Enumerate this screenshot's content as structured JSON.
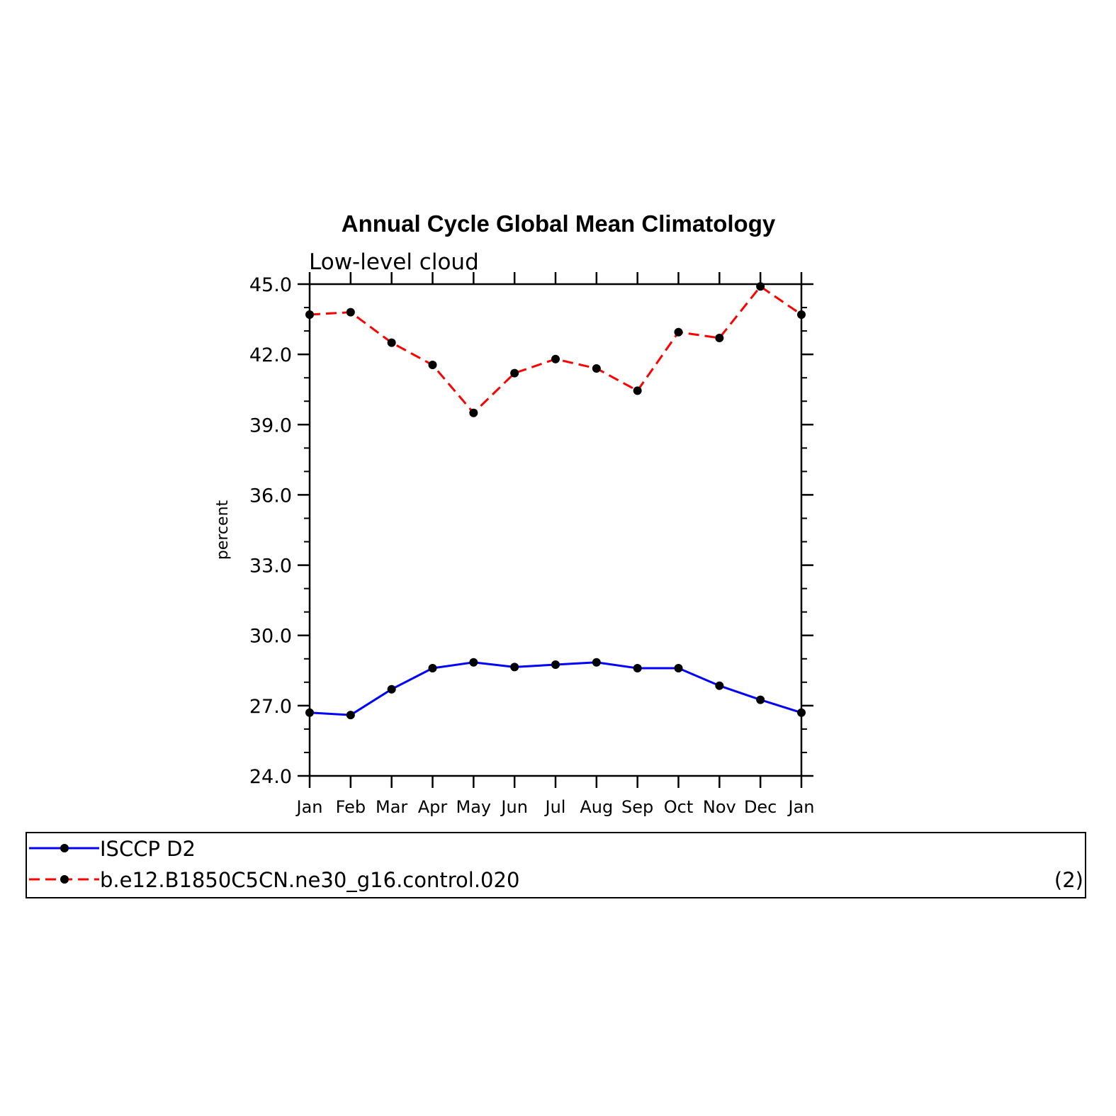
{
  "chart_data": {
    "type": "line",
    "title": "Annual Cycle Global Mean Climatology",
    "subtitle": "Low-level cloud",
    "xlabel": "",
    "ylabel": "percent",
    "categories": [
      "Jan",
      "Feb",
      "Mar",
      "Apr",
      "May",
      "Jun",
      "Jul",
      "Aug",
      "Sep",
      "Oct",
      "Nov",
      "Dec",
      "Jan"
    ],
    "ylim": [
      24.0,
      45.0
    ],
    "yticks": [
      "24.0",
      "27.0",
      "30.0",
      "33.0",
      "36.0",
      "39.0",
      "42.0",
      "45.0"
    ],
    "series": [
      {
        "name": "ISCCP D2",
        "color": "#0000ff",
        "dash": "solid",
        "values": [
          26.7,
          26.6,
          27.7,
          28.6,
          28.85,
          28.65,
          28.75,
          28.85,
          28.6,
          28.6,
          27.85,
          27.25,
          26.7
        ]
      },
      {
        "name": "b.e12.B1850C5CN.ne30_g16.control.020",
        "color": "#ff0000",
        "dash": "dashed",
        "values": [
          43.7,
          43.8,
          42.5,
          41.55,
          39.5,
          41.2,
          41.8,
          41.4,
          40.45,
          42.95,
          42.7,
          44.9,
          43.7
        ]
      }
    ],
    "legend_location": "bottom",
    "legend_note": "(2)",
    "grid": false
  }
}
